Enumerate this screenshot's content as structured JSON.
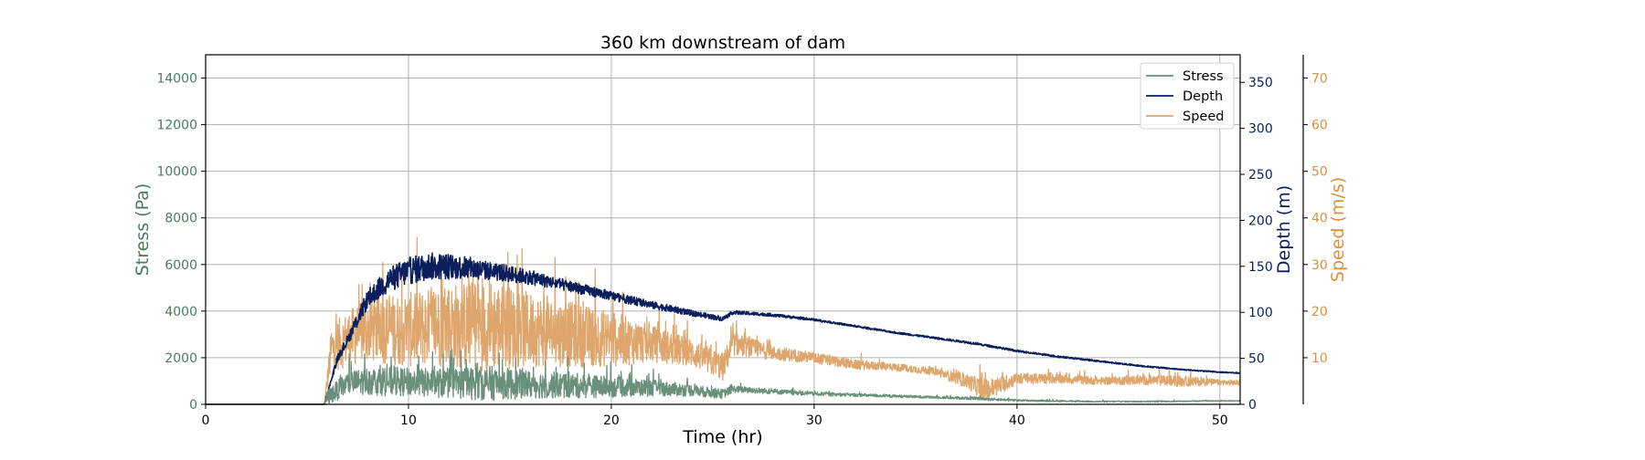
{
  "chart_data": {
    "type": "line",
    "title": "360 km downstream of dam",
    "xlabel": "Time (hr)",
    "xlim": [
      0,
      51
    ],
    "xticks": [
      0,
      10,
      20,
      30,
      40,
      50
    ],
    "grid": true,
    "legend_position": "top-right",
    "axes": {
      "stress": {
        "label": "Stress (Pa)",
        "ylim": [
          0,
          15000
        ],
        "ticks": [
          0,
          2000,
          4000,
          6000,
          8000,
          10000,
          12000,
          14000
        ],
        "color": "#4a7a5e"
      },
      "depth": {
        "label": "Depth (m)",
        "ylim": [
          0,
          380
        ],
        "ticks": [
          0,
          50,
          100,
          150,
          200,
          250,
          300,
          350
        ],
        "color": "#0a1f5c"
      },
      "speed": {
        "label": "Speed (m/s)",
        "ylim": [
          0,
          75
        ],
        "ticks": [
          10,
          20,
          30,
          40,
          50,
          60,
          70
        ],
        "color": "#d9913c"
      }
    },
    "series": [
      {
        "name": "Stress",
        "axis": "stress",
        "color": "#6a8f7a",
        "x": [
          0,
          5.85,
          6,
          7,
          8,
          9,
          10,
          12,
          14,
          16,
          18,
          20,
          22,
          24,
          25.5,
          26,
          28,
          30,
          32,
          34,
          36,
          38,
          40,
          42,
          44,
          46,
          48,
          50,
          51
        ],
        "y": [
          0,
          0,
          300,
          900,
          1000,
          1000,
          950,
          900,
          900,
          850,
          800,
          750,
          700,
          600,
          450,
          650,
          550,
          450,
          400,
          350,
          300,
          250,
          170,
          140,
          120,
          120,
          130,
          150,
          150
        ],
        "noise": [
          0,
          0,
          350,
          500,
          600,
          650,
          600,
          650,
          750,
          600,
          550,
          450,
          350,
          250,
          200,
          150,
          110,
          80,
          70,
          60,
          50,
          60,
          40,
          30,
          25,
          25,
          25,
          20,
          20
        ]
      },
      {
        "name": "Depth",
        "axis": "depth",
        "color": "#0a1f5c",
        "x": [
          0,
          5.85,
          6.5,
          7,
          8,
          9,
          10,
          11,
          12,
          13,
          14,
          15,
          16,
          18,
          20,
          22,
          24,
          25.5,
          26,
          28,
          30,
          32,
          34,
          36,
          38,
          40,
          42,
          44,
          46,
          48,
          50,
          51
        ],
        "y": [
          0,
          0,
          50,
          70,
          115,
          135,
          145,
          150,
          150,
          148,
          145,
          142,
          138,
          128,
          118,
          108,
          99,
          93,
          100,
          97,
          92,
          85,
          78,
          72,
          66,
          58,
          52,
          47,
          42,
          38,
          35,
          34
        ],
        "noise": [
          0,
          0,
          4,
          6,
          10,
          13,
          15,
          15,
          14,
          12,
          10,
          9,
          8,
          6,
          5,
          4,
          3,
          2.5,
          2,
          1.5,
          1.2,
          1,
          1,
          1,
          1.2,
          1,
          1,
          0.8,
          0.8,
          0.6,
          0.6,
          0.6
        ]
      },
      {
        "name": "Speed",
        "axis": "speed",
        "color": "#dea66c",
        "x": [
          0,
          5.85,
          6.2,
          7,
          8,
          10,
          12,
          14,
          16,
          18,
          20,
          22,
          24,
          25.5,
          26,
          28,
          30,
          32,
          34,
          36,
          37.5,
          38.5,
          40,
          42,
          44,
          46,
          48,
          50,
          51
        ],
        "y": [
          0,
          0,
          12,
          14,
          16,
          16,
          17,
          17,
          16,
          15,
          14,
          13,
          11,
          8,
          13,
          11,
          10,
          8.5,
          8,
          7,
          5,
          3,
          5.5,
          5.5,
          5,
          5.2,
          5,
          4.7,
          4.6
        ],
        "noise": [
          0,
          0,
          5,
          6,
          7,
          8,
          9,
          10,
          8,
          7,
          6,
          4,
          3,
          3,
          2.5,
          1.5,
          1.2,
          1,
          0.8,
          0.8,
          1.5,
          2.5,
          1.2,
          1,
          0.8,
          1,
          1.2,
          0.6,
          0.6
        ]
      }
    ]
  }
}
